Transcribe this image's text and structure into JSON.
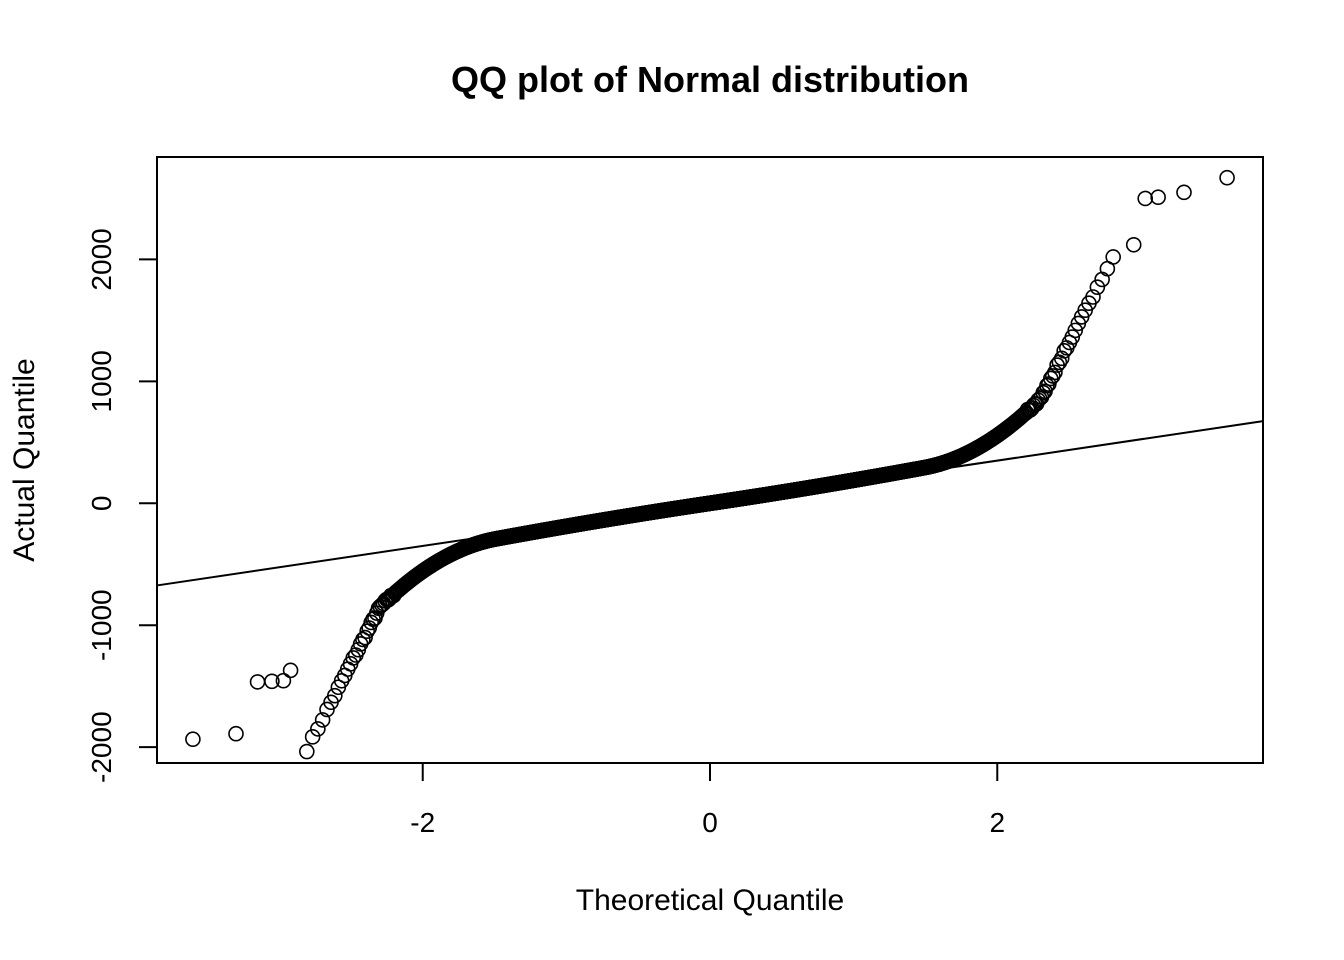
{
  "chart_data": {
    "type": "scatter",
    "title": "QQ plot of Normal distribution",
    "xlabel": "Theoretical Quantile",
    "ylabel": "Actual Quantile",
    "xlim": [
      -3.85,
      3.85
    ],
    "ylim": [
      -2130,
      2840
    ],
    "x_ticks": [
      -2,
      0,
      2
    ],
    "x_tick_labels": [
      "-2",
      "0",
      "2"
    ],
    "y_ticks": [
      -2000,
      -1000,
      0,
      1000,
      2000
    ],
    "y_tick_labels": [
      "-2000",
      "-1000",
      "0",
      "1000",
      "2000"
    ],
    "grid": false,
    "reference_line": {
      "slope": 175,
      "intercept": 0
    },
    "sample_size": 3000,
    "highlighted_points": {
      "x": [
        -3.6,
        -3.3,
        -3.15,
        -3.05,
        -2.97,
        -2.92,
        2.95,
        3.03,
        3.12,
        3.3,
        3.6
      ],
      "y": [
        -1935,
        -1890,
        -1465,
        -1460,
        -1455,
        -1370,
        2120,
        2500,
        2510,
        2550,
        2670
      ]
    },
    "point_style": "open-circle",
    "colors": {
      "points": "#000000",
      "line": "#000000",
      "frame": "#000000"
    }
  }
}
